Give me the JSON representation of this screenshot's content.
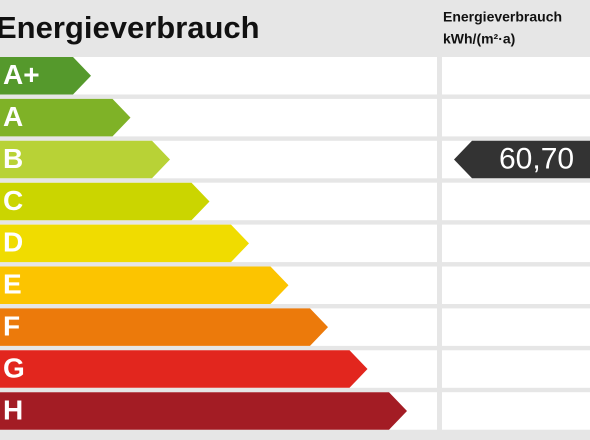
{
  "header": {
    "title": "Energieverbrauch",
    "column_title": "Energieverbrauch",
    "column_unit": "kWh/(m²·a)"
  },
  "classes": [
    {
      "label": "A+",
      "color": "#55992c"
    },
    {
      "label": "A",
      "color": "#7fb227"
    },
    {
      "label": "B",
      "color": "#b8d236"
    },
    {
      "label": "C",
      "color": "#cbd500"
    },
    {
      "label": "D",
      "color": "#f0dc00"
    },
    {
      "label": "E",
      "color": "#fcc400"
    },
    {
      "label": "F",
      "color": "#ec7a0b"
    },
    {
      "label": "G",
      "color": "#e2261e"
    },
    {
      "label": "H",
      "color": "#a31c24"
    }
  ],
  "indicator": {
    "class": "B",
    "value": "60,70",
    "color": "#333333"
  }
}
